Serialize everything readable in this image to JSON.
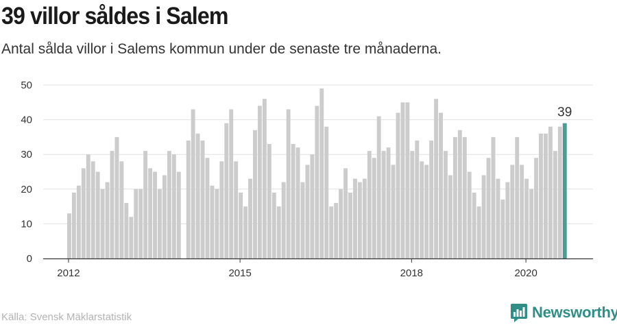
{
  "title": "39 villor såldes i Salem",
  "subtitle": "Antal sålda villor i Salems kommun under de senaste tre månaderna.",
  "source": "Källa: Svensk Mäklarstatistik",
  "brand": {
    "name": "Newsworthy",
    "icon": "bar-chart-logo-icon"
  },
  "colors": {
    "bar": "#cccccc",
    "highlight": "#4e9a94",
    "axis": "#333333",
    "grid": "#e0e0e0"
  },
  "chart_data": {
    "type": "bar",
    "x_label_positions_note": "",
    "yticks": [
      0,
      10,
      20,
      30,
      40,
      50
    ],
    "ylim": [
      0,
      50
    ],
    "xticks": [
      "2012",
      "2015",
      "2018",
      "2020"
    ],
    "highlight_label": "39",
    "values": [
      13,
      19,
      21,
      26,
      30,
      28,
      25,
      20,
      22,
      31,
      35,
      28,
      16,
      12,
      20,
      20,
      31,
      26,
      25,
      20,
      24,
      31,
      30,
      25,
      null,
      34,
      43,
      36,
      34,
      29,
      21,
      20,
      28,
      39,
      43,
      28,
      19,
      15,
      23,
      37,
      44,
      46,
      33,
      19,
      15,
      22,
      43,
      33,
      32,
      22,
      27,
      30,
      44,
      49,
      38,
      15,
      16,
      20,
      26,
      19,
      23,
      22,
      23,
      31,
      29,
      41,
      31,
      32,
      27,
      42,
      45,
      45,
      31,
      34,
      28,
      27,
      34,
      46,
      42,
      31,
      24,
      35,
      37,
      35,
      25,
      19,
      15,
      24,
      29,
      35,
      23,
      17,
      22,
      27,
      35,
      27,
      23,
      20,
      29,
      36,
      36,
      38,
      31,
      38,
      39
    ],
    "grid": true
  }
}
